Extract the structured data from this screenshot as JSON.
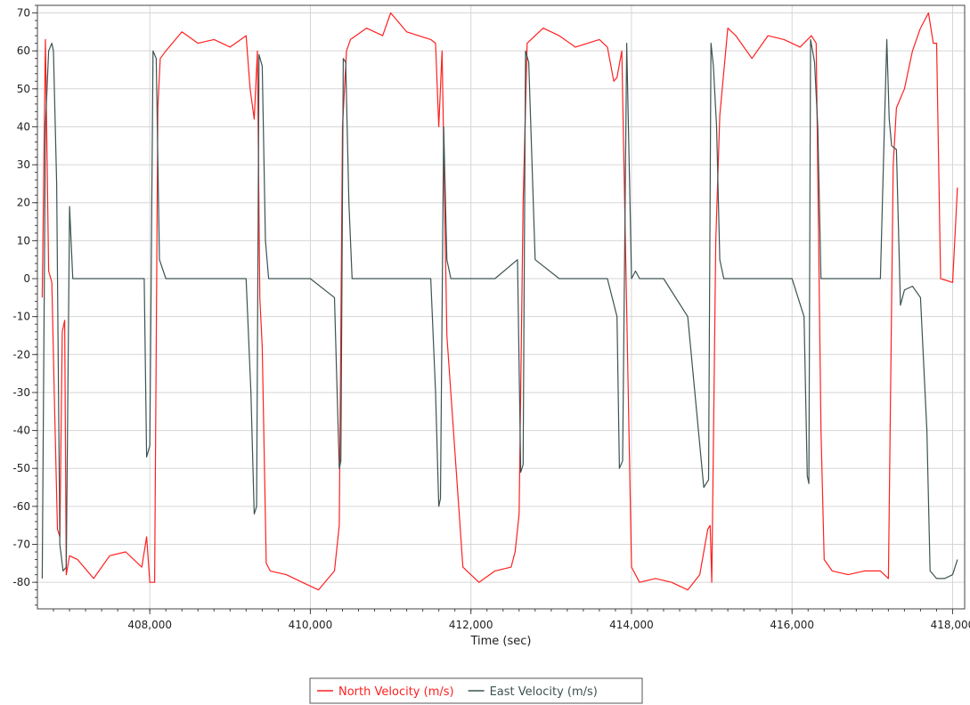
{
  "chart_data": {
    "type": "line",
    "title": "",
    "xlabel": "Time (sec)",
    "ylabel": "",
    "xlim": [
      406600,
      418150
    ],
    "ylim": [
      -87,
      72
    ],
    "x_ticks": [
      408000,
      410000,
      412000,
      414000,
      416000,
      418000
    ],
    "x_tick_labels": [
      "408,000",
      "410,000",
      "412,000",
      "414,000",
      "416,000",
      "418,000"
    ],
    "y_ticks": [
      70,
      60,
      50,
      40,
      30,
      20,
      10,
      0,
      -10,
      -20,
      -30,
      -40,
      -50,
      -60,
      -70,
      -80
    ],
    "y_tick_labels": [
      "70",
      "60",
      "50",
      "40",
      "30",
      "20",
      "10",
      "0",
      "-10",
      "-20",
      "-30",
      "-40",
      "-50",
      "-60",
      "-70",
      "-80"
    ],
    "grid": true,
    "legend_position": "bottom-center",
    "series": [
      {
        "name": "North Velocity (m/s)",
        "color": "#ff2020",
        "x": [
          406660,
          406700,
          406740,
          406780,
          406810,
          406850,
          406880,
          406910,
          406940,
          406960,
          407000,
          407100,
          407300,
          407500,
          407700,
          407900,
          407960,
          408000,
          408060,
          408100,
          408130,
          408200,
          408400,
          408600,
          408800,
          409000,
          409200,
          409250,
          409300,
          409340,
          409370,
          409400,
          409450,
          409500,
          409700,
          409900,
          410100,
          410300,
          410360,
          410400,
          410450,
          410500,
          410700,
          410900,
          411000,
          411200,
          411500,
          411560,
          411600,
          411640,
          411700,
          411900,
          412100,
          412300,
          412500,
          412550,
          412600,
          412650,
          412700,
          412900,
          413100,
          413300,
          413600,
          413700,
          413780,
          413820,
          413880,
          414000,
          414100,
          414300,
          414500,
          414700,
          414850,
          414950,
          414980,
          415000,
          415050,
          415100,
          415200,
          415300,
          415500,
          415700,
          415900,
          416100,
          416240,
          416300,
          416360,
          416400,
          416500,
          416700,
          416900,
          417100,
          417200,
          417260,
          417300,
          417400,
          417500,
          417600,
          417700,
          417760,
          417800,
          417850,
          418000,
          418060
        ],
        "y": [
          -5,
          63,
          2,
          -1,
          -30,
          -66,
          -68,
          -14,
          -11,
          -78,
          -73,
          -74,
          -79,
          -73,
          -72,
          -76,
          -68,
          -80,
          -80,
          45,
          58,
          60,
          65,
          62,
          63,
          61,
          64,
          50,
          42,
          60,
          -5,
          -18,
          -75,
          -77,
          -78,
          -80,
          -82,
          -77,
          -65,
          40,
          60,
          63,
          66,
          64,
          70,
          65,
          63,
          62,
          40,
          60,
          -15,
          -76,
          -80,
          -77,
          -76,
          -72,
          -62,
          20,
          62,
          66,
          64,
          61,
          63,
          61,
          52,
          53,
          60,
          -76,
          -80,
          -79,
          -80,
          -82,
          -78,
          -66,
          -65,
          -80,
          10,
          43,
          66,
          64,
          58,
          64,
          63,
          61,
          64,
          62,
          -40,
          -74,
          -77,
          -78,
          -77,
          -77,
          -79,
          30,
          45,
          50,
          60,
          66,
          70,
          62,
          62,
          0,
          -1,
          24
        ]
      },
      {
        "name": "East Velocity (m/s)",
        "color": "#3c5352",
        "x": [
          406660,
          406700,
          406740,
          406780,
          406800,
          406840,
          406880,
          406920,
          406960,
          407000,
          407040,
          407080,
          407200,
          407500,
          407800,
          407930,
          407960,
          408000,
          408040,
          408080,
          408120,
          408200,
          408500,
          408800,
          409100,
          409200,
          409260,
          409300,
          409330,
          409360,
          409400,
          409440,
          409480,
          409700,
          410000,
          410300,
          410360,
          410380,
          410410,
          410440,
          410480,
          410520,
          410700,
          411000,
          411300,
          411500,
          411560,
          411600,
          411620,
          411660,
          411700,
          411750,
          412000,
          412300,
          412580,
          412620,
          412650,
          412680,
          412720,
          412800,
          413100,
          413400,
          413700,
          413820,
          413850,
          413890,
          413940,
          414000,
          414050,
          414100,
          414400,
          414700,
          414900,
          414960,
          414990,
          415020,
          415060,
          415100,
          415150,
          415400,
          415700,
          416000,
          416150,
          416190,
          416210,
          416230,
          416280,
          416320,
          416360,
          416500,
          416800,
          417100,
          417150,
          417180,
          417210,
          417240,
          417300,
          417350,
          417400,
          417500,
          417600,
          417680,
          417720,
          417760,
          417800,
          417900,
          418000,
          418060
        ],
        "y": [
          -79,
          40,
          60,
          62,
          60,
          25,
          -70,
          -77,
          -76,
          19,
          0,
          0,
          0,
          0,
          0,
          0,
          -47,
          -44,
          60,
          58,
          5,
          0,
          0,
          0,
          0,
          0,
          -30,
          -62,
          -60,
          59,
          56,
          10,
          0,
          0,
          0,
          -5,
          -50,
          -48,
          58,
          57,
          20,
          0,
          0,
          0,
          0,
          0,
          -30,
          -60,
          -58,
          40,
          5,
          0,
          0,
          0,
          5,
          -51,
          -49,
          60,
          57,
          5,
          0,
          0,
          0,
          -10,
          -50,
          -48,
          62,
          0,
          2,
          0,
          0,
          -10,
          -55,
          -53,
          62,
          56,
          40,
          5,
          0,
          0,
          0,
          0,
          -10,
          -52,
          -54,
          63,
          57,
          40,
          0,
          0,
          0,
          0,
          40,
          63,
          42,
          35,
          34,
          -7,
          -3,
          -2,
          -5,
          -40,
          -77,
          -78,
          -79,
          -79,
          -78,
          -74
        ]
      }
    ]
  }
}
